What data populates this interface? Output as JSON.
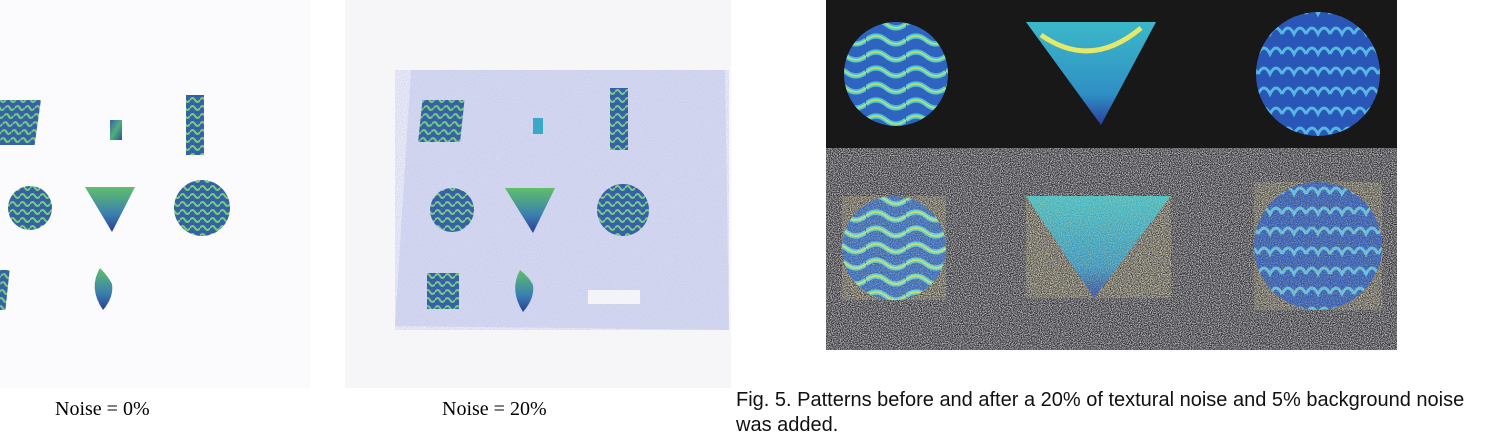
{
  "figure": {
    "panel_left_caption": "Noise = 0%",
    "panel_middle_caption": "Noise = 20%",
    "caption": "Fig. 5.  Patterns before and after a 20% of textural noise and 5% background noise was added."
  },
  "colors": {
    "pattern_blue": "#3a5fa8",
    "pattern_green": "#5fbf6a",
    "pattern_cyan": "#3aa9c9",
    "pattern_yellow": "#e4e36a",
    "noise_lavender": "#b9bde3",
    "panel_dark": "#181818"
  }
}
